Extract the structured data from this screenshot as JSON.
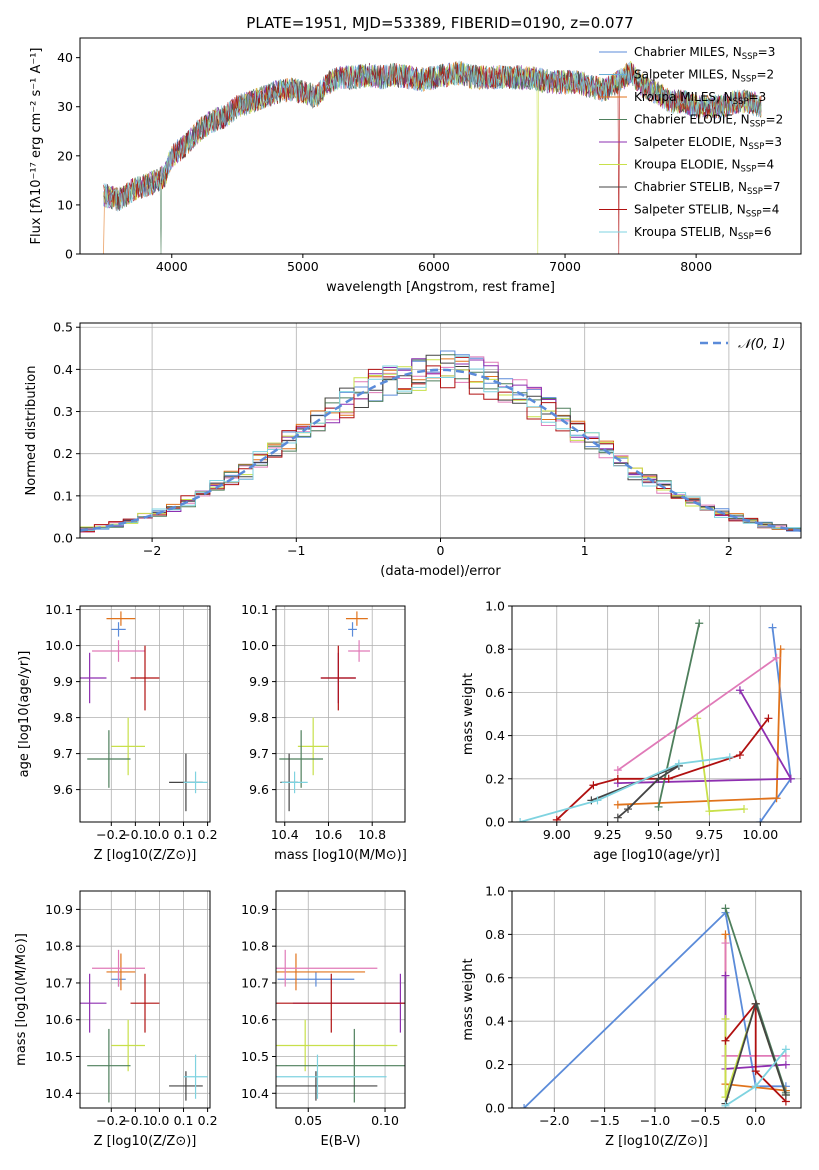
{
  "figure_title": "PLATE=1951, MJD=53389, FIBERID=0190, z=0.077",
  "colors": {
    "Chabrier MILES": "#5b8bd9",
    "Salpeter MILES": "#6aaed6",
    "Kroupa MILES": "#e0731c",
    "Chabrier ELODIE": "#4e7f5c",
    "Salpeter ELODIE": "#8e2fb0",
    "Kroupa ELODIE": "#c8e04a",
    "Chabrier STELIB": "#444444",
    "Salpeter STELIB": "#b01010",
    "Kroupa STELIB": "#7fd3e0",
    "Kroupa MILES pink": "#e07ab8"
  },
  "chart_data": [
    {
      "id": "spectrum",
      "type": "line",
      "title": "PLATE=1951, MJD=53389, FIBERID=0190, z=0.077",
      "xlabel": "wavelength [Angstrom, rest frame]",
      "ylabel": "Flux [fλ10⁻¹⁷ erg cm⁻² s⁻¹ A⁻¹]",
      "xlim": [
        3300,
        8800
      ],
      "ylim": [
        0,
        44
      ],
      "xticks": [
        4000,
        5000,
        6000,
        7000,
        8000
      ],
      "yticks": [
        0,
        10,
        20,
        30,
        40
      ],
      "grid": false,
      "legend_position": "top-right",
      "continuum": [
        [
          3480,
          12
        ],
        [
          3600,
          11
        ],
        [
          3700,
          13
        ],
        [
          3800,
          14
        ],
        [
          3900,
          15
        ],
        [
          3950,
          16
        ],
        [
          4000,
          20
        ],
        [
          4100,
          22
        ],
        [
          4200,
          25
        ],
        [
          4300,
          27
        ],
        [
          4400,
          28
        ],
        [
          4500,
          30
        ],
        [
          4600,
          31
        ],
        [
          4700,
          32
        ],
        [
          4800,
          33
        ],
        [
          4900,
          33.5
        ],
        [
          5000,
          33
        ],
        [
          5100,
          32
        ],
        [
          5200,
          35
        ],
        [
          5300,
          36
        ],
        [
          5400,
          36
        ],
        [
          5500,
          36.5
        ],
        [
          5600,
          36
        ],
        [
          5700,
          36.5
        ],
        [
          5800,
          36
        ],
        [
          5900,
          35.5
        ],
        [
          6000,
          36
        ],
        [
          6100,
          36.5
        ],
        [
          6200,
          37
        ],
        [
          6300,
          36
        ],
        [
          6400,
          36
        ],
        [
          6500,
          36
        ],
        [
          6600,
          36
        ],
        [
          6700,
          36
        ],
        [
          6800,
          35.5
        ],
        [
          6900,
          35
        ],
        [
          7000,
          35
        ],
        [
          7100,
          35
        ],
        [
          7200,
          34
        ],
        [
          7300,
          33.5
        ],
        [
          7400,
          35
        ],
        [
          7500,
          37
        ],
        [
          7600,
          34
        ],
        [
          7700,
          33
        ],
        [
          7800,
          31
        ],
        [
          7900,
          31
        ],
        [
          8000,
          30
        ],
        [
          8100,
          30
        ],
        [
          8200,
          30
        ],
        [
          8300,
          31
        ],
        [
          8400,
          31
        ],
        [
          8500,
          30
        ]
      ],
      "series": [
        {
          "name": "Chabrier MILES, N_SSP=3",
          "label_main": "Chabrier MILES, N",
          "label_sub": "SSP",
          "label_val": "=3"
        },
        {
          "name": "Salpeter MILES, N_SSP=2",
          "label_main": "Salpeter MILES, N",
          "label_sub": "SSP",
          "label_val": "=2"
        },
        {
          "name": "Kroupa MILES, N_SSP=3",
          "label_main": "Kroupa MILES, N",
          "label_sub": "SSP",
          "label_val": "=3"
        },
        {
          "name": "Chabrier ELODIE, N_SSP=2",
          "label_main": "Chabrier ELODIE, N",
          "label_sub": "SSP",
          "label_val": "=2"
        },
        {
          "name": "Salpeter ELODIE, N_SSP=3",
          "label_main": "Salpeter ELODIE, N",
          "label_sub": "SSP",
          "label_val": "=3"
        },
        {
          "name": "Kroupa ELODIE, N_SSP=4",
          "label_main": "Kroupa ELODIE, N",
          "label_sub": "SSP",
          "label_val": "=4"
        },
        {
          "name": "Chabrier STELIB, N_SSP=7",
          "label_main": "Chabrier STELIB, N",
          "label_sub": "SSP",
          "label_val": "=7"
        },
        {
          "name": "Salpeter STELIB, N_SSP=4",
          "label_main": "Salpeter STELIB, N",
          "label_sub": "SSP",
          "label_val": "=4"
        },
        {
          "name": "Kroupa STELIB, N_SSP=6",
          "label_main": "Kroupa STELIB, N",
          "label_sub": "SSP",
          "label_val": "=6"
        }
      ]
    },
    {
      "id": "residuals",
      "type": "bar",
      "xlabel": "(data-model)/error",
      "ylabel": "Normed distribution",
      "xlim": [
        -2.5,
        2.5
      ],
      "ylim": [
        0,
        0.51
      ],
      "xticks": [
        -2,
        -1,
        0,
        1,
        2
      ],
      "yticks": [
        0.0,
        0.1,
        0.2,
        0.3,
        0.4,
        0.5
      ],
      "grid": true,
      "legend_position": "top-right",
      "legend": "𝒩(0, 1)",
      "bin_width": 0.1,
      "bin_start": -2.5
    },
    {
      "id": "age_vs_Z",
      "type": "scatter",
      "xlabel": "Z [log10(Z/Z⊙)]",
      "ylabel": "age  [log10(age/yr)]",
      "xlim": [
        -0.33,
        0.21
      ],
      "ylim": [
        9.51,
        10.11
      ],
      "xticks": [
        -0.2,
        -0.1,
        0.0,
        0.1,
        0.2
      ],
      "yticks": [
        9.6,
        9.7,
        9.8,
        9.9,
        10.0,
        10.1
      ],
      "grid": true
    },
    {
      "id": "age_vs_mass",
      "type": "scatter",
      "xlabel": "mass [log10(M/M⊙)]",
      "ylabel": "",
      "xlim": [
        10.36,
        10.95
      ],
      "ylim": [
        9.51,
        10.11
      ],
      "xticks": [
        10.4,
        10.6,
        10.8
      ],
      "yticks": [
        9.6,
        9.7,
        9.8,
        9.9,
        10.0,
        10.1
      ],
      "grid": true
    },
    {
      "id": "weight_vs_age",
      "type": "line",
      "xlabel": "age  [log10(age/yr)]",
      "ylabel": "mass weight",
      "xlim": [
        8.78,
        10.2
      ],
      "ylim": [
        0,
        1.0
      ],
      "xticks": [
        9.0,
        9.25,
        9.5,
        9.75,
        10.0
      ],
      "yticks": [
        0.0,
        0.2,
        0.4,
        0.6,
        0.8,
        1.0
      ],
      "grid": true
    },
    {
      "id": "mass_vs_Z",
      "type": "scatter",
      "xlabel": "Z [log10(Z/Z⊙)]",
      "ylabel": "mass [log10(M/M⊙)]",
      "xlim": [
        -0.33,
        0.21
      ],
      "ylim": [
        10.36,
        10.95
      ],
      "xticks": [
        -0.2,
        -0.1,
        0.0,
        0.1,
        0.2
      ],
      "yticks": [
        10.4,
        10.5,
        10.6,
        10.7,
        10.8,
        10.9
      ],
      "grid": true
    },
    {
      "id": "mass_vs_ebv",
      "type": "scatter",
      "xlabel": "E(B-V)",
      "ylabel": "",
      "xlim": [
        0.029,
        0.113
      ],
      "ylim": [
        10.36,
        10.95
      ],
      "xticks": [
        0.05,
        0.1
      ],
      "yticks": [
        10.4,
        10.5,
        10.6,
        10.7,
        10.8,
        10.9
      ],
      "grid": true
    },
    {
      "id": "weight_vs_Z",
      "type": "line",
      "xlabel": "Z [log10(Z/Z⊙)]",
      "ylabel": "mass weight",
      "xlim": [
        -2.42,
        0.45
      ],
      "ylim": [
        0,
        1.0
      ],
      "xticks": [
        -2.0,
        -1.5,
        -1.0,
        -0.5,
        0.0
      ],
      "yticks": [
        0.0,
        0.2,
        0.4,
        0.6,
        0.8,
        1.0
      ],
      "grid": true
    }
  ],
  "points": [
    {
      "model": "Chabrier MILES",
      "Z": -0.17,
      "Zerr": 0.03,
      "age": 10.045,
      "ageerr": 0.02,
      "mass": 10.71,
      "masserr": 0.02,
      "ebv": 0.055,
      "ebverr": 0.025
    },
    {
      "model": "Kroupa MILES",
      "Z": -0.16,
      "Zerr": 0.06,
      "age": 10.075,
      "ageerr": 0.02,
      "mass": 10.73,
      "masserr": 0.05,
      "ebv": 0.042,
      "ebverr": 0.045
    },
    {
      "model": "Kroupa MILES pink",
      "Z": -0.17,
      "Zerr": 0.11,
      "age": 9.985,
      "ageerr": 0.03,
      "mass": 10.74,
      "masserr": 0.05,
      "ebv": 0.035,
      "ebverr": 0.06
    },
    {
      "model": "Salpeter ELODIE",
      "Z": -0.29,
      "Zerr": 0.07,
      "age": 9.91,
      "ageerr": 0.07,
      "mass": 10.645,
      "masserr": 0.08,
      "ebv": 0.11,
      "ebverr": 0.07
    },
    {
      "model": "Salpeter STELIB",
      "Z": -0.06,
      "Zerr": 0.06,
      "age": 9.91,
      "ageerr": 0.09,
      "mass": 10.645,
      "masserr": 0.08,
      "ebv": 0.065,
      "ebverr": 0.08
    },
    {
      "model": "Kroupa ELODIE",
      "Z": -0.13,
      "Zerr": 0.07,
      "age": 9.72,
      "ageerr": 0.08,
      "mass": 10.53,
      "masserr": 0.07,
      "ebv": 0.048,
      "ebverr": 0.06
    },
    {
      "model": "Chabrier ELODIE",
      "Z": -0.21,
      "Zerr": 0.09,
      "age": 9.685,
      "ageerr": 0.08,
      "mass": 10.475,
      "masserr": 0.1,
      "ebv": 0.08,
      "ebverr": 0.08
    },
    {
      "model": "Chabrier STELIB",
      "Z": 0.11,
      "Zerr": 0.07,
      "age": 9.62,
      "ageerr": 0.08,
      "mass": 10.42,
      "masserr": 0.04,
      "ebv": 0.055,
      "ebverr": 0.04
    },
    {
      "model": "Kroupa STELIB",
      "Z": 0.15,
      "Zerr": 0.05,
      "age": 9.62,
      "ageerr": 0.03,
      "mass": 10.445,
      "masserr": 0.06,
      "ebv": 0.056,
      "ebverr": 0.045
    }
  ],
  "weight_age_lines": [
    {
      "model": "Chabrier MILES",
      "pts": [
        [
          10.06,
          0.9
        ],
        [
          10.15,
          0.2
        ],
        [
          10.0,
          0.0
        ]
      ]
    },
    {
      "model": "Kroupa MILES",
      "pts": [
        [
          10.1,
          0.8
        ],
        [
          10.08,
          0.11
        ],
        [
          9.3,
          0.08
        ]
      ]
    },
    {
      "model": "Kroupa MILES pink",
      "pts": [
        [
          10.08,
          0.76
        ],
        [
          9.3,
          0.24
        ]
      ]
    },
    {
      "model": "Salpeter ELODIE",
      "pts": [
        [
          9.9,
          0.61
        ],
        [
          10.15,
          0.2
        ],
        [
          9.3,
          0.18
        ]
      ]
    },
    {
      "model": "Kroupa ELODIE",
      "pts": [
        [
          9.69,
          0.48
        ],
        [
          9.75,
          0.05
        ],
        [
          9.92,
          0.06
        ]
      ]
    },
    {
      "model": "Chabrier ELODIE",
      "pts": [
        [
          9.7,
          0.92
        ],
        [
          9.5,
          0.07
        ]
      ]
    },
    {
      "model": "Salpeter STELIB",
      "pts": [
        [
          10.04,
          0.48
        ],
        [
          9.9,
          0.31
        ],
        [
          9.55,
          0.2
        ],
        [
          9.3,
          0.2
        ],
        [
          9.18,
          0.17
        ],
        [
          9.0,
          0.01
        ]
      ]
    },
    {
      "model": "Chabrier STELIB",
      "pts": [
        [
          9.3,
          0.02
        ],
        [
          9.35,
          0.06
        ],
        [
          9.5,
          0.2
        ],
        [
          9.6,
          0.26
        ],
        [
          9.17,
          0.1
        ]
      ]
    },
    {
      "model": "Kroupa STELIB",
      "pts": [
        [
          8.82,
          0.0
        ],
        [
          9.2,
          0.1
        ],
        [
          9.6,
          0.27
        ],
        [
          9.85,
          0.3
        ]
      ]
    }
  ],
  "weight_Z_lines": [
    {
      "model": "Chabrier MILES",
      "pts": [
        [
          -2.3,
          0.0
        ],
        [
          -0.3,
          0.9
        ],
        [
          0.0,
          0.1
        ],
        [
          0.3,
          0.1
        ]
      ]
    },
    {
      "model": "Kroupa MILES",
      "pts": [
        [
          -0.3,
          0.8
        ],
        [
          -0.3,
          0.11
        ],
        [
          0.3,
          0.08
        ]
      ]
    },
    {
      "model": "Kroupa MILES pink",
      "pts": [
        [
          -0.3,
          0.76
        ],
        [
          -0.3,
          0.24
        ],
        [
          0.3,
          0.24
        ]
      ]
    },
    {
      "model": "Salpeter ELODIE",
      "pts": [
        [
          -0.3,
          0.61
        ],
        [
          -0.3,
          0.18
        ],
        [
          0.3,
          0.2
        ]
      ]
    },
    {
      "model": "Kroupa ELODIE",
      "pts": [
        [
          -0.3,
          0.41
        ],
        [
          -0.3,
          0.05
        ],
        [
          0.0,
          0.48
        ],
        [
          0.3,
          0.06
        ]
      ]
    },
    {
      "model": "Chabrier ELODIE",
      "pts": [
        [
          -0.3,
          0.92
        ],
        [
          0.3,
          0.07
        ]
      ]
    },
    {
      "model": "Salpeter STELIB",
      "pts": [
        [
          -0.3,
          0.31
        ],
        [
          0.0,
          0.48
        ],
        [
          0.0,
          0.17
        ],
        [
          0.3,
          0.03
        ]
      ]
    },
    {
      "model": "Chabrier STELIB",
      "pts": [
        [
          -0.3,
          0.02
        ],
        [
          0.0,
          0.48
        ],
        [
          0.3,
          0.06
        ]
      ]
    },
    {
      "model": "Kroupa STELIB",
      "pts": [
        [
          -0.3,
          0.01
        ],
        [
          0.0,
          0.1
        ],
        [
          0.3,
          0.27
        ]
      ]
    }
  ]
}
